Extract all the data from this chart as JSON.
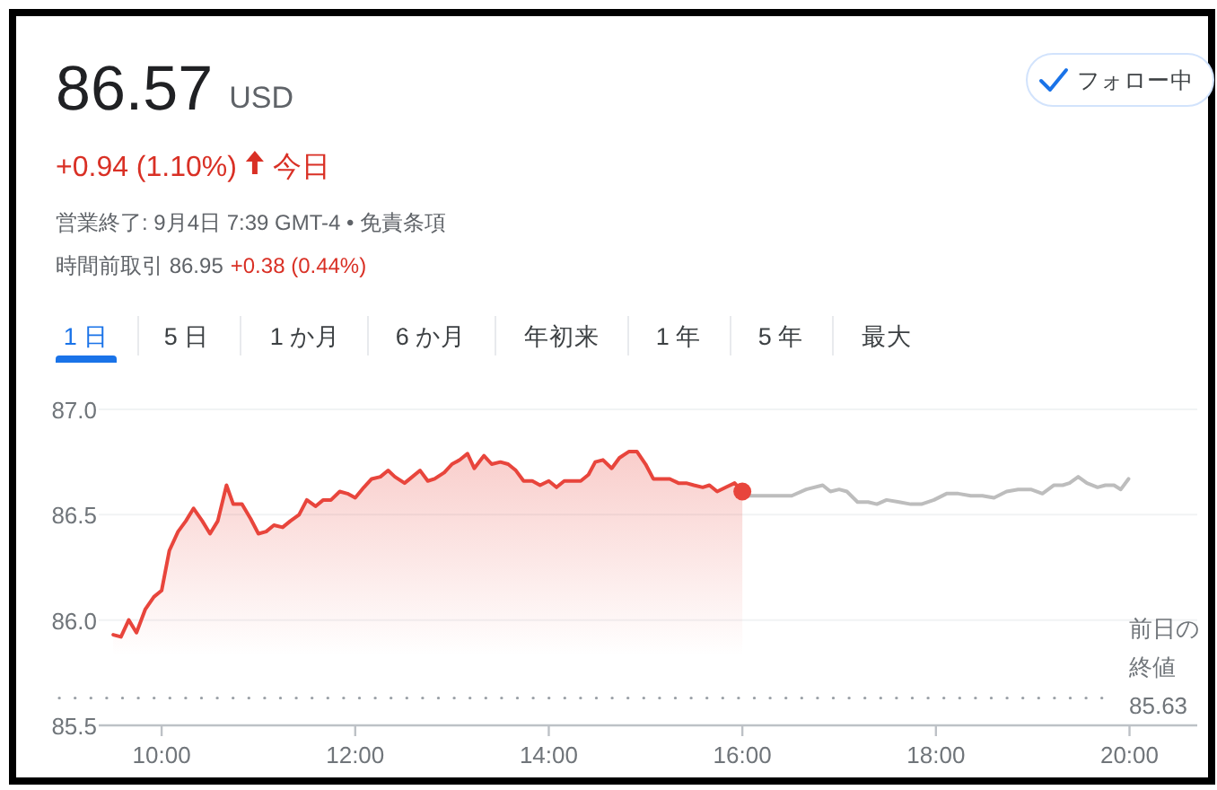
{
  "chart_data": {
    "type": "area",
    "title": "86.57",
    "annotations": [
      "USD",
      "フォロー中",
      "+0.94 (1.10%)",
      "今日",
      "営業終了: 9月4日 7:39 GMT-4 • 免責条項",
      "時間前取引 86.95",
      "+0.38 (0.44%)",
      "1 日",
      "5 日",
      "1 か月",
      "6 か月",
      "年初来",
      "1 年",
      "5 年",
      "最大"
    ],
    "xlim": [
      9.35,
      20.7
    ],
    "xticks": [
      {
        "value": 10,
        "label": "10:00"
      },
      {
        "value": 12,
        "label": "12:00"
      },
      {
        "value": 14,
        "label": "14:00"
      },
      {
        "value": 16,
        "label": "16:00"
      },
      {
        "value": 18,
        "label": "18:00"
      },
      {
        "value": 20,
        "label": "20:00"
      }
    ],
    "ylim": [
      85.5,
      87.0
    ],
    "yticks": [
      85.5,
      {
        "value": 86.0,
        "label": "86.0"
      },
      86.5,
      {
        "value": 87.0,
        "label": "87.0"
      }
    ],
    "grid": "y",
    "series": [
      {
        "color": "#e8453c",
        "x": [
          9.5,
          9.58,
          9.66,
          9.74,
          9.83,
          9.92,
          10.0,
          10.08,
          10.17,
          10.25,
          10.33,
          10.42,
          10.5,
          10.58,
          10.67,
          10.74,
          10.83,
          10.92,
          11.0,
          11.08,
          11.16,
          11.25,
          11.33,
          11.42,
          11.5,
          11.59,
          11.67,
          11.75,
          11.84,
          11.92,
          12.0,
          12.09,
          12.17,
          12.26,
          12.34,
          12.41,
          12.51,
          12.59,
          12.67,
          12.75,
          12.82,
          12.92,
          13.0,
          13.08,
          13.16,
          13.23,
          13.33,
          13.41,
          13.5,
          13.58,
          13.66,
          13.74,
          13.83,
          13.91,
          14.0,
          14.08,
          14.16,
          14.23,
          14.33,
          14.41,
          14.48,
          14.56,
          14.65,
          14.73,
          14.83,
          14.91,
          15.0,
          15.08,
          15.17,
          15.25,
          15.34,
          15.42,
          15.5,
          15.59,
          15.66,
          15.74,
          15.83,
          15.92,
          16.0
        ],
        "values": [
          85.93,
          85.92,
          86.0,
          85.94,
          86.05,
          86.11,
          86.14,
          86.33,
          86.42,
          86.47,
          86.53,
          86.47,
          86.41,
          86.47,
          86.64,
          86.55,
          86.55,
          86.48,
          86.41,
          86.42,
          86.45,
          86.44,
          86.47,
          86.5,
          86.57,
          86.54,
          86.57,
          86.57,
          86.61,
          86.6,
          86.58,
          86.63,
          86.67,
          86.68,
          86.71,
          86.68,
          86.65,
          86.68,
          86.71,
          86.66,
          86.67,
          86.7,
          86.74,
          86.76,
          86.79,
          86.72,
          86.78,
          86.74,
          86.75,
          86.74,
          86.71,
          86.66,
          86.66,
          86.64,
          86.66,
          86.63,
          86.66,
          86.66,
          86.66,
          86.69,
          86.75,
          86.76,
          86.72,
          86.77,
          86.8,
          86.8,
          86.74,
          86.67,
          86.67,
          86.67,
          86.65,
          86.65,
          86.64,
          86.63,
          86.64,
          86.61,
          86.63,
          86.65,
          86.61
        ]
      },
      {
        "type": "line",
        "color": "#bdbdbd",
        "x": [
          16.0,
          16.14,
          16.51,
          16.66,
          16.83,
          16.91,
          17.0,
          17.08,
          17.19,
          17.3,
          17.39,
          17.49,
          17.62,
          17.74,
          17.85,
          17.98,
          18.11,
          18.23,
          18.36,
          18.48,
          18.6,
          18.73,
          18.85,
          18.98,
          19.1,
          19.22,
          19.31,
          19.38,
          19.47,
          19.56,
          19.67,
          19.75,
          19.84,
          19.91,
          19.99
        ],
        "values": [
          86.59,
          86.59,
          86.59,
          86.62,
          86.64,
          86.61,
          86.62,
          86.61,
          86.56,
          86.56,
          86.55,
          86.57,
          86.56,
          86.55,
          86.55,
          86.57,
          86.6,
          86.6,
          86.59,
          86.59,
          86.58,
          86.61,
          86.62,
          86.62,
          86.6,
          86.64,
          86.64,
          86.65,
          86.68,
          86.65,
          86.63,
          86.64,
          86.64,
          86.62,
          86.67
        ]
      },
      {
        "type": "scatter",
        "color": "#e8453c",
        "marker": "circle",
        "x": [
          16.0
        ],
        "values": [
          86.61
        ]
      }
    ],
    "ref_lines": [
      {
        "axis": "y",
        "value": 85.63,
        "label": "前日の終値 85.63",
        "color": "#9aa0a6",
        "line_style": "dotted"
      }
    ]
  }
}
